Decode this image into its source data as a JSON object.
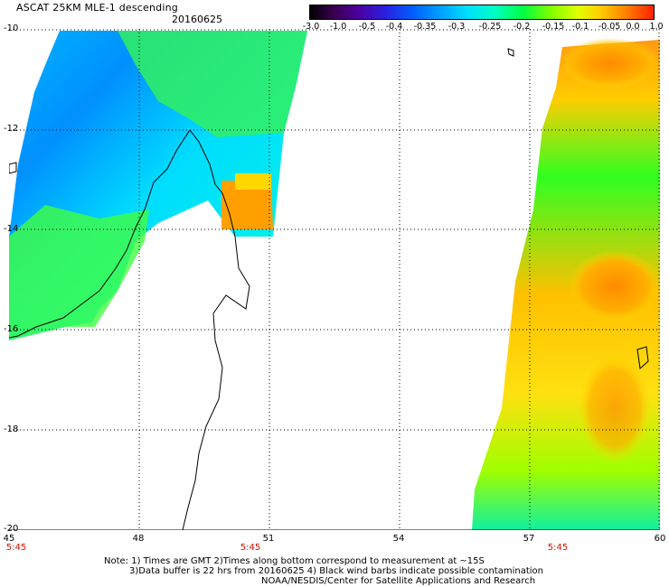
{
  "header": {
    "title": "ASCAT 25KM MLE-1 descending",
    "date": "20160625"
  },
  "colorbar": {
    "ticks": [
      "-3.0",
      "-1.0",
      "-0.5",
      "-0.4",
      "-0.35",
      "-0.3",
      "-0.25",
      "-0.2",
      "-0.15",
      "-0.1",
      "-0.05",
      "0.0",
      "1.0"
    ]
  },
  "axes": {
    "lat_labels": [
      "-10",
      "-12",
      "-14",
      "-16",
      "-18",
      "-20"
    ],
    "lon_labels": [
      "45",
      "48",
      "51",
      "54",
      "57",
      "60"
    ],
    "time_labels": [
      "5:45",
      "5:45",
      "5:45"
    ]
  },
  "footer": {
    "line1": "Note: 1) Times are GMT 2)Times along bottom correspond to measurement at ~15S",
    "line2": "3)Data buffer is 22 hrs from 20160625 4) Black wind barbs indicate possible contamination",
    "line3": "NOAA/NESDIS/Center for Satellite Applications and Research"
  },
  "colors": {
    "time_label": "#d01000",
    "grid": "#000000",
    "coastline": "#000000"
  }
}
